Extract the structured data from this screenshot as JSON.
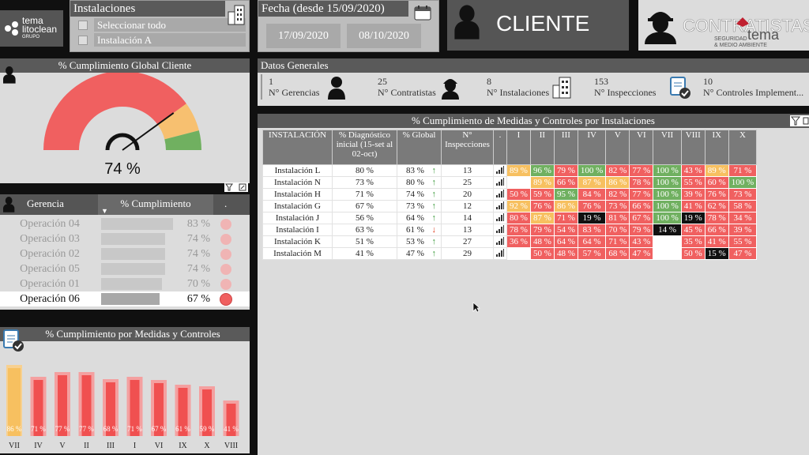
{
  "logo": {
    "line1": "tema",
    "line2": "litoclean",
    "line3": "GRUPO"
  },
  "instalaciones": {
    "title": "Instalaciones",
    "options": [
      "Seleccionar todo",
      "Instalación A"
    ]
  },
  "fecha": {
    "title": "Fecha (desde 15/09/2020)",
    "from": "17/09/2020",
    "to": "08/10/2020"
  },
  "cliente": {
    "label": "CLIENTE"
  },
  "contratistas": {
    "label": "CONTRATISTAS",
    "brand": "tema",
    "sub1": "SEGURIDAD",
    "sub2": "& MEDIO AMBIENTE"
  },
  "gauge": {
    "title": "% Cumplimiento Global Cliente",
    "value": 74,
    "value_label": "74 %"
  },
  "gerencia": {
    "headers": [
      "Gerencia",
      "% Cumplimiento",
      "."
    ],
    "rows": [
      {
        "name": "Operación 04",
        "value": 83,
        "label": "83 %"
      },
      {
        "name": "Operación 03",
        "value": 74,
        "label": "74 %"
      },
      {
        "name": "Operación 02",
        "value": 74,
        "label": "74 %"
      },
      {
        "name": "Operación 05",
        "value": 74,
        "label": "74 %"
      },
      {
        "name": "Operación 01",
        "value": 70,
        "label": "70 %"
      },
      {
        "name": "Operación 06",
        "value": 67,
        "label": "67 %"
      }
    ]
  },
  "medidas": {
    "title": "% Cumplimiento por Medidas y Controles"
  },
  "chart_data": {
    "type": "bar",
    "categories": [
      "VII",
      "IV",
      "V",
      "II",
      "III",
      "I",
      "VI",
      "IX",
      "X",
      "VIII"
    ],
    "values": [
      86,
      71,
      77,
      77,
      68,
      71,
      67,
      61,
      59,
      41
    ],
    "labels": [
      "86 %",
      "71 %",
      "77 %",
      "77 %",
      "68 %",
      "71 %",
      "67 %",
      "61 %",
      "59 %",
      "41 %"
    ],
    "ylim": [
      0,
      100
    ]
  },
  "datos": {
    "title": "Datos Generales",
    "stats": [
      {
        "value": "1",
        "label": "N° Gerencias"
      },
      {
        "value": "25",
        "label": "N° Contratistas"
      },
      {
        "value": "8",
        "label": "N° Instalaciones"
      },
      {
        "value": "153",
        "label": "N° Inspecciones"
      },
      {
        "value": "10",
        "label": "N° Controles Implement..."
      }
    ]
  },
  "tabla": {
    "title": "% Cumplimiento de Medidas y Controles por Instalaciones",
    "headers": [
      "INSTALACIÓN",
      "% Diagnóstico inicial (15-set al 02-oct)",
      "% Global",
      "N° Inspecciones",
      ".",
      "I",
      "II",
      "III",
      "IV",
      "V",
      "VI",
      "VII",
      "VIII",
      "IX",
      "X"
    ],
    "rows": [
      {
        "name": "Instalación L",
        "diag": "80 %",
        "global": "83 %",
        "trend": "up",
        "insp": "13",
        "cells": [
          "89 %",
          "96 %",
          "79 %",
          "100 %",
          "82 %",
          "77 %",
          "100 %",
          "43 %",
          "89 %",
          "71 %"
        ]
      },
      {
        "name": "Instalación N",
        "diag": "73 %",
        "global": "80 %",
        "trend": "up",
        "insp": "25",
        "cells": [
          "",
          "89 %",
          "66 %",
          "87 %",
          "86 %",
          "78 %",
          "100 %",
          "55 %",
          "60 %",
          "100 %"
        ]
      },
      {
        "name": "Instalación H",
        "diag": "71 %",
        "global": "74 %",
        "trend": "up",
        "insp": "20",
        "cells": [
          "50 %",
          "59 %",
          "95 %",
          "84 %",
          "82 %",
          "77 %",
          "100 %",
          "39 %",
          "76 %",
          "73 %"
        ]
      },
      {
        "name": "Instalación G",
        "diag": "67 %",
        "global": "73 %",
        "trend": "up",
        "insp": "12",
        "cells": [
          "92 %",
          "76 %",
          "86 %",
          "76 %",
          "73 %",
          "66 %",
          "100 %",
          "41 %",
          "62 %",
          "58 %"
        ]
      },
      {
        "name": "Instalación J",
        "diag": "56 %",
        "global": "64 %",
        "trend": "up",
        "insp": "14",
        "cells": [
          "80 %",
          "87 %",
          "71 %",
          "19 %",
          "81 %",
          "67 %",
          "100 %",
          "19 %",
          "78 %",
          "34 %"
        ]
      },
      {
        "name": "Instalación I",
        "diag": "63 %",
        "global": "61 %",
        "trend": "down",
        "insp": "13",
        "cells": [
          "78 %",
          "79 %",
          "54 %",
          "83 %",
          "70 %",
          "79 %",
          "14 %",
          "45 %",
          "66 %",
          "39 %"
        ]
      },
      {
        "name": "Instalación K",
        "diag": "51 %",
        "global": "53 %",
        "trend": "up",
        "insp": "27",
        "cells": [
          "36 %",
          "48 %",
          "64 %",
          "64 %",
          "71 %",
          "43 %",
          "",
          "35 %",
          "41 %",
          "55 %"
        ]
      },
      {
        "name": "Instalación M",
        "diag": "41 %",
        "global": "47 %",
        "trend": "up",
        "insp": "29",
        "cells": [
          "",
          "50 %",
          "48 %",
          "57 %",
          "68 %",
          "47 %",
          "",
          "50 %",
          "15 %",
          "47 %"
        ]
      }
    ]
  },
  "colors": {
    "red": "#f06060",
    "orange": "#f7c060",
    "green": "#70b060",
    "black": "#111111",
    "dark_red": "#d94040"
  }
}
